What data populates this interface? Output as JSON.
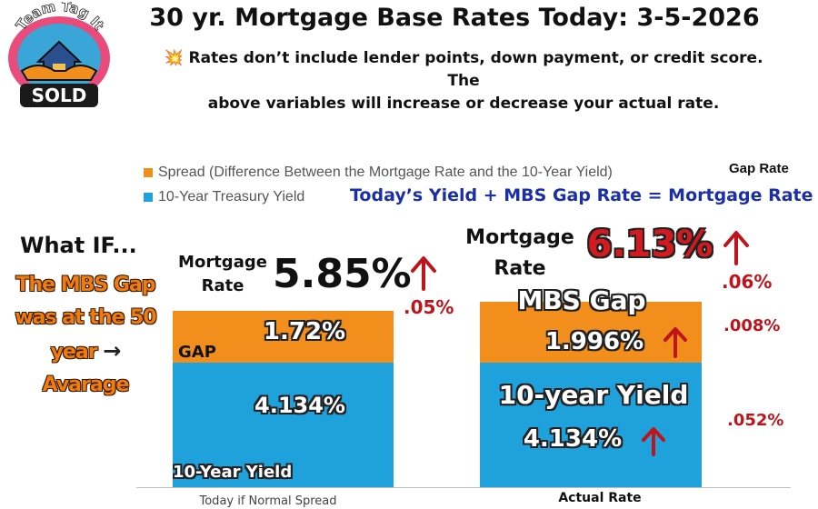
{
  "logo": {
    "top_text": "Team Tag It",
    "bottom_text": "SOLD"
  },
  "header": {
    "title": "30 yr. Mortgage Base Rates Today: 3-5-2026",
    "subtitle_line1": "💥 Rates don’t include lender points, down payment, or credit score. The",
    "subtitle_line2": "above variables will increase or decrease your actual rate."
  },
  "legend": [
    {
      "label": "Spread (Difference Between the Mortgage Rate and the 10-Year Yield)",
      "color": "#f28e1c"
    },
    {
      "label": "10-Year Treasury Yield",
      "color": "#1fa2dc"
    }
  ],
  "notes": {
    "gap_rate": "Gap Rate",
    "formula": "Today’s  Yield +  MBS Gap Rate = Mortgage Rate",
    "what_if": "What IF...",
    "what_if_lines": [
      "The MBS Gap",
      "was at the 50",
      "year",
      "Avarage"
    ]
  },
  "colors": {
    "spread": "#f28e1c",
    "yield": "#1fa2dc",
    "change_red": "#c0141c"
  },
  "chart_data": {
    "type": "bar",
    "stacked": true,
    "categories": [
      "Today if Normal Spread",
      "Actual Rate"
    ],
    "series": [
      {
        "name": "10-Year Treasury Yield",
        "values": [
          4.134,
          4.134
        ]
      },
      {
        "name": "Spread (Difference Between the Mortgage Rate and the 10-Year Yield)",
        "values": [
          1.72,
          1.996
        ]
      }
    ],
    "ylim": [
      0,
      6.8
    ],
    "grid": false,
    "legend_position": "top-left",
    "bar_labels": {
      "normal": {
        "yield_value": "4.134%",
        "yield_name": "10-Year Yield",
        "gap_value": "1.72%",
        "gap_name": "GAP",
        "mortgage_label_line1": "Mortgage",
        "mortgage_label_line2": "Rate",
        "mortgage_value": "5.85%",
        "change": ".05%"
      },
      "actual": {
        "yield_name": "10-year Yield",
        "yield_value": "4.134%",
        "gap_name": "MBS Gap",
        "gap_value": "1.996%",
        "mortgage_label_line1": "Mortgage",
        "mortgage_label_line2": "Rate",
        "mortgage_value": "6.13%",
        "mortgage_change": ".06%",
        "gap_change": ".008%",
        "yield_change": ".052%"
      }
    }
  }
}
